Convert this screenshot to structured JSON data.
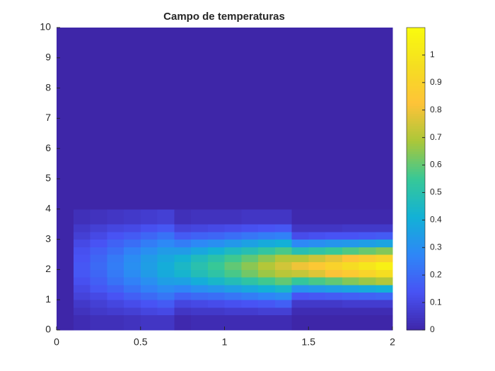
{
  "chart_data": {
    "type": "heatmap",
    "title": "Campo de temperaturas",
    "x": [
      0,
      0.1,
      0.2,
      0.3,
      0.4,
      0.5,
      0.6,
      0.7,
      0.8,
      0.9,
      1,
      1.1,
      1.2,
      1.3,
      1.4,
      1.5,
      1.6,
      1.7,
      1.8,
      1.9,
      2
    ],
    "y": [
      0,
      0.5,
      0.75,
      1,
      1.25,
      1.5,
      1.75,
      2,
      2.25,
      2.5,
      2.75,
      3,
      3.25,
      3.5,
      4,
      10
    ],
    "z": [
      [
        0,
        0.02,
        0.03,
        0.03,
        0.04,
        0.05,
        0.05,
        0.01,
        0.02,
        0.02,
        0.02,
        0.02,
        0.02,
        0.02,
        0,
        0,
        0,
        0,
        0,
        0
      ],
      [
        0,
        0.04,
        0.06,
        0.07,
        0.08,
        0.1,
        0.11,
        0.05,
        0.06,
        0.06,
        0.07,
        0.07,
        0.08,
        0.08,
        0.02,
        0.02,
        0.02,
        0.02,
        0.02,
        0.02
      ],
      [
        0,
        0.06,
        0.08,
        0.1,
        0.12,
        0.14,
        0.16,
        0.1,
        0.11,
        0.12,
        0.13,
        0.14,
        0.15,
        0.17,
        0.06,
        0.06,
        0.06,
        0.07,
        0.07,
        0.07
      ],
      [
        0,
        0.09,
        0.11,
        0.14,
        0.17,
        0.2,
        0.23,
        0.18,
        0.2,
        0.21,
        0.23,
        0.25,
        0.27,
        0.29,
        0.14,
        0.15,
        0.16,
        0.17,
        0.18,
        0.19
      ],
      [
        0,
        0.11,
        0.15,
        0.18,
        0.22,
        0.26,
        0.29,
        0.27,
        0.3,
        0.32,
        0.35,
        0.38,
        0.41,
        0.44,
        0.31,
        0.33,
        0.35,
        0.37,
        0.39,
        0.41
      ],
      [
        0,
        0.13,
        0.17,
        0.22,
        0.26,
        0.3,
        0.35,
        0.36,
        0.4,
        0.44,
        0.48,
        0.52,
        0.56,
        0.6,
        0.54,
        0.57,
        0.6,
        0.64,
        0.67,
        0.7
      ],
      [
        0,
        0.15,
        0.19,
        0.24,
        0.29,
        0.34,
        0.39,
        0.43,
        0.48,
        0.52,
        0.57,
        0.62,
        0.67,
        0.71,
        0.73,
        0.77,
        0.82,
        0.86,
        0.91,
        0.96
      ],
      [
        0,
        0.15,
        0.2,
        0.25,
        0.3,
        0.35,
        0.4,
        0.45,
        0.5,
        0.55,
        0.6,
        0.65,
        0.7,
        0.75,
        0.8,
        0.85,
        0.9,
        0.95,
        1,
        1.05
      ],
      [
        0,
        0.14,
        0.19,
        0.24,
        0.29,
        0.34,
        0.38,
        0.42,
        0.47,
        0.51,
        0.56,
        0.6,
        0.65,
        0.7,
        0.7,
        0.74,
        0.78,
        0.83,
        0.87,
        0.91
      ],
      [
        0,
        0.13,
        0.17,
        0.21,
        0.26,
        0.3,
        0.34,
        0.34,
        0.38,
        0.42,
        0.46,
        0.49,
        0.53,
        0.57,
        0.49,
        0.52,
        0.55,
        0.58,
        0.61,
        0.64
      ],
      [
        0,
        0.11,
        0.14,
        0.18,
        0.21,
        0.25,
        0.28,
        0.25,
        0.28,
        0.3,
        0.33,
        0.36,
        0.39,
        0.41,
        0.28,
        0.3,
        0.32,
        0.33,
        0.35,
        0.37
      ],
      [
        0,
        0.08,
        0.11,
        0.14,
        0.16,
        0.19,
        0.22,
        0.16,
        0.18,
        0.19,
        0.21,
        0.23,
        0.25,
        0.26,
        0.12,
        0.13,
        0.14,
        0.14,
        0.15,
        0.16
      ],
      [
        0,
        0.06,
        0.08,
        0.1,
        0.11,
        0.13,
        0.15,
        0.09,
        0.1,
        0.11,
        0.12,
        0.13,
        0.14,
        0.15,
        0.05,
        0.05,
        0.05,
        0.06,
        0.06,
        0.06
      ],
      [
        0,
        0.03,
        0.04,
        0.05,
        0.06,
        0.07,
        0.08,
        0.03,
        0.04,
        0.04,
        0.04,
        0.05,
        0.05,
        0.05,
        0.01,
        0.01,
        0.01,
        0.01,
        0.01,
        0.01
      ],
      [
        0,
        0,
        0,
        0,
        0,
        0,
        0,
        0,
        0,
        0,
        0,
        0,
        0,
        0,
        0,
        0,
        0,
        0,
        0,
        0
      ]
    ],
    "xlim": [
      0,
      2
    ],
    "xticks": [
      0,
      0.5,
      1,
      1.5,
      2
    ],
    "ylim": [
      0,
      10
    ],
    "yticks": [
      0,
      1,
      2,
      3,
      4,
      5,
      6,
      7,
      8,
      9,
      10
    ],
    "colormap": "parula",
    "colorbar": true,
    "clim": [
      0,
      1.1
    ],
    "cticks": [
      0,
      0.1,
      0.2,
      0.3,
      0.4,
      0.5,
      0.6,
      0.7,
      0.8,
      0.9,
      1
    ]
  }
}
